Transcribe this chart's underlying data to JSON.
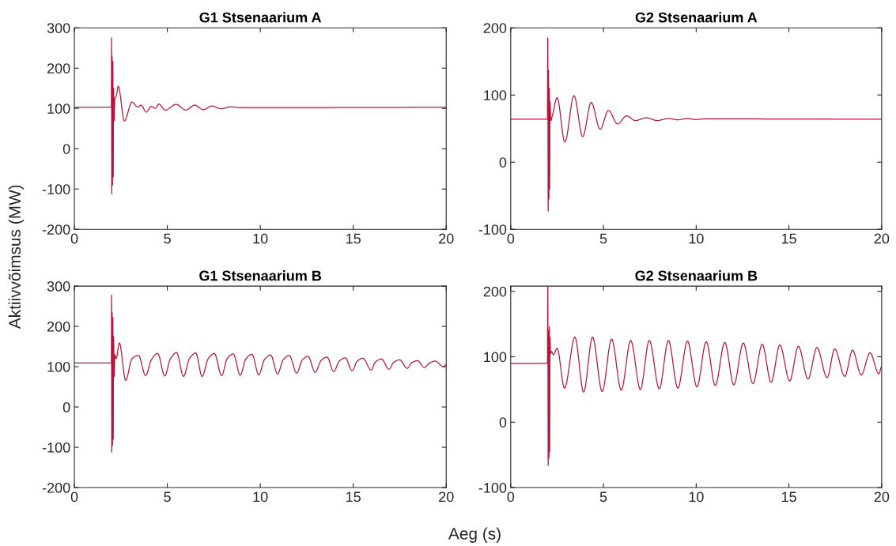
{
  "chart_data": [
    {
      "type": "line",
      "title": "G1 Stsenaarium A",
      "ylabel": "Aktiivvõimsus (MW)",
      "xlim": [
        0,
        20
      ],
      "ylim": [
        -200,
        300
      ],
      "xticks": [
        0,
        5,
        10,
        15,
        20
      ],
      "yticks": [
        -200,
        -100,
        0,
        100,
        200,
        300
      ],
      "grid": false,
      "line_style": "solid",
      "series": [
        {
          "color": "#b5173a",
          "x": [
            0,
            1.99,
            2.0,
            2.01,
            2.03,
            2.05,
            2.07,
            2.09,
            2.11,
            2.14,
            2.18,
            2.25,
            2.36,
            2.69,
            3.1,
            3.4,
            3.6,
            3.86,
            4.15,
            4.35,
            4.55,
            4.89,
            5.47,
            5.99,
            6.47,
            6.94,
            7.4,
            7.9,
            8.4,
            9.0,
            20
          ],
          "values": [
            103,
            103,
            275,
            -112,
            230,
            -90,
            217,
            -70,
            150,
            70,
            125,
            130,
            155,
            69,
            116,
            104,
            108,
            91,
            105,
            100,
            111,
            96,
            110,
            96,
            108,
            97,
            106,
            99,
            104,
            102,
            103
          ]
        }
      ]
    },
    {
      "type": "line",
      "title": "G2 Stsenaarium A",
      "xlim": [
        0,
        20
      ],
      "ylim": [
        -100,
        200
      ],
      "xticks": [
        0,
        5,
        10,
        15,
        20
      ],
      "yticks": [
        -100,
        0,
        100,
        200
      ],
      "grid": false,
      "line_style": "solid",
      "series": [
        {
          "color": "#b5173a",
          "x": [
            0,
            1.98,
            2.0,
            2.02,
            2.04,
            2.06,
            2.08,
            2.1,
            2.12,
            2.16,
            2.25,
            2.5,
            2.92,
            3.41,
            3.88,
            4.34,
            4.82,
            5.27,
            5.76,
            6.25,
            6.72,
            7.3,
            7.9,
            8.5,
            9.0,
            9.5,
            10.0,
            10.5,
            20
          ],
          "values": [
            64,
            64,
            185,
            -73,
            137,
            -55,
            110,
            -40,
            90,
            62,
            70,
            96,
            30,
            99,
            38,
            89,
            49,
            77,
            57,
            69,
            62,
            66,
            62,
            65,
            63,
            65,
            63.5,
            64.5,
            64
          ]
        }
      ]
    },
    {
      "type": "line",
      "title": "G1 Stsenaarium B",
      "xlabel": "Aeg (s)",
      "xlim": [
        0,
        20
      ],
      "ylim": [
        -200,
        300
      ],
      "xticks": [
        0,
        5,
        10,
        15,
        20
      ],
      "yticks": [
        -200,
        -100,
        0,
        100,
        200,
        300
      ],
      "grid": false,
      "line_style": "solid",
      "series": [
        {
          "color": "#b5173a",
          "x": [
            0,
            1.99,
            2.0,
            2.01,
            2.03,
            2.05,
            2.07,
            2.09,
            2.11,
            2.14,
            2.18,
            2.25,
            2.42,
            2.76,
            3.1,
            3.45,
            3.83,
            4.15,
            4.48,
            4.86,
            5.17,
            5.5,
            5.87,
            6.2,
            6.53,
            6.87,
            7.2,
            7.53,
            7.92,
            8.22,
            8.55,
            8.92,
            9.22,
            9.55,
            9.92,
            10.23,
            10.56,
            10.93,
            11.23,
            11.56,
            11.96,
            12.25,
            12.56,
            12.96,
            13.26,
            13.59,
            13.95,
            14.25,
            14.57,
            14.94,
            15.2,
            15.52,
            15.96,
            16.2,
            16.52,
            16.92,
            17.18,
            17.5,
            17.9,
            18.15,
            18.46,
            18.83,
            19.1,
            19.41,
            19.85,
            20
          ],
          "values": [
            109,
            109,
            278,
            -112,
            235,
            -95,
            222,
            -80,
            175,
            75,
            130,
            120,
            159,
            66,
            120,
            128,
            78,
            118,
            133,
            77,
            120,
            135,
            76,
            121,
            134,
            76,
            120,
            133,
            78,
            120,
            132,
            79,
            119,
            131,
            80,
            118,
            129,
            82,
            117,
            128,
            84,
            116,
            126,
            86,
            115,
            124,
            88,
            114,
            122,
            90,
            113,
            121,
            92,
            112,
            119,
            94,
            111,
            117,
            96,
            110,
            115,
            98,
            109,
            114,
            100,
            105
          ]
        }
      ]
    },
    {
      "type": "line",
      "title": "G2 Stsenaarium B",
      "xlim": [
        0,
        20
      ],
      "ylim": [
        -100,
        208
      ],
      "xticks": [
        0,
        5,
        10,
        15,
        20
      ],
      "yticks": [
        -100,
        0,
        100,
        200
      ],
      "grid": false,
      "line_style": "solid",
      "series": [
        {
          "color": "#b5173a",
          "x": [
            0,
            1.98,
            2.0,
            2.02,
            2.04,
            2.06,
            2.08,
            2.1,
            2.12,
            2.15,
            2.2,
            2.3,
            2.5,
            2.9,
            3.46,
            3.93,
            4.41,
            4.93,
            5.44,
            5.96,
            6.47,
            6.99,
            7.47,
            8.01,
            8.5,
            9.01,
            9.53,
            10.04,
            10.54,
            11.03,
            11.54,
            12.03,
            12.54,
            13.06,
            13.56,
            14.04,
            14.51,
            15.04,
            15.51,
            16.03,
            16.51,
            17.06,
            17.47,
            18.01,
            18.43,
            18.9,
            19.37,
            19.85,
            20
          ],
          "values": [
            90,
            90,
            208,
            -66,
            140,
            -55,
            146,
            -45,
            130,
            105,
            108,
            103,
            113,
            52,
            130,
            46,
            130,
            47,
            127,
            49,
            125,
            50,
            125,
            51,
            125,
            52,
            124,
            54,
            123,
            56,
            122,
            57,
            121,
            59,
            119,
            61,
            118,
            63,
            116,
            66,
            114,
            68,
            112,
            70,
            110,
            72,
            106,
            74,
            85
          ]
        }
      ]
    }
  ]
}
